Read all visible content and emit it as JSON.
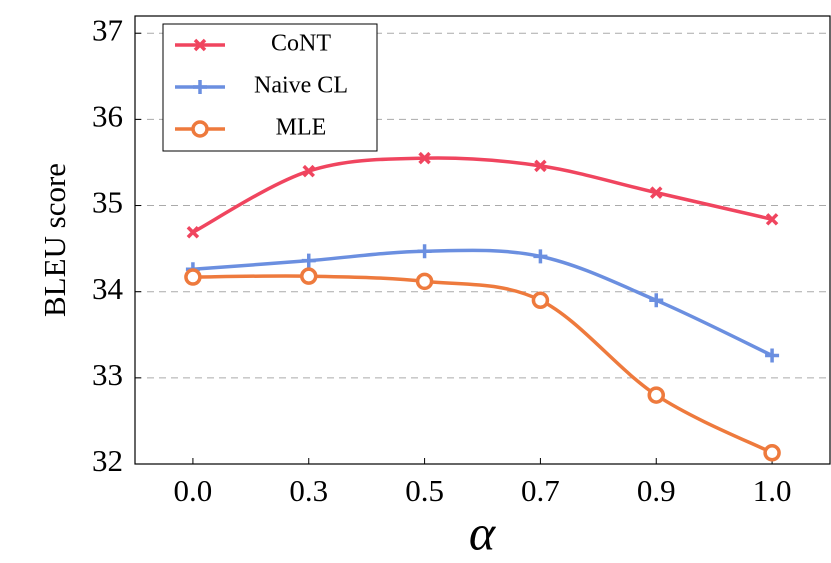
{
  "chart_data": {
    "type": "line",
    "x_label": "α",
    "y_label": "BLEU score",
    "categories": [
      "0.0",
      "0.3",
      "0.5",
      "0.7",
      "0.9",
      "1.0"
    ],
    "series": [
      {
        "name": "CoNT",
        "color": "#f0455f",
        "marker": "x",
        "values": [
          34.69,
          35.4,
          35.55,
          35.46,
          35.15,
          34.84
        ]
      },
      {
        "name": "Naive CL",
        "color": "#6b8fe0",
        "marker": "plus",
        "values": [
          34.26,
          34.36,
          34.47,
          34.41,
          33.9,
          33.26
        ]
      },
      {
        "name": "MLE",
        "color": "#ee7a3d",
        "marker": "circle",
        "values": [
          34.17,
          34.18,
          34.12,
          33.9,
          32.8,
          32.13
        ]
      }
    ],
    "ylim": [
      32,
      37.2
    ],
    "yticks": [
      32,
      33,
      34,
      35,
      36,
      37
    ],
    "grid": true,
    "legend": "upper left"
  }
}
